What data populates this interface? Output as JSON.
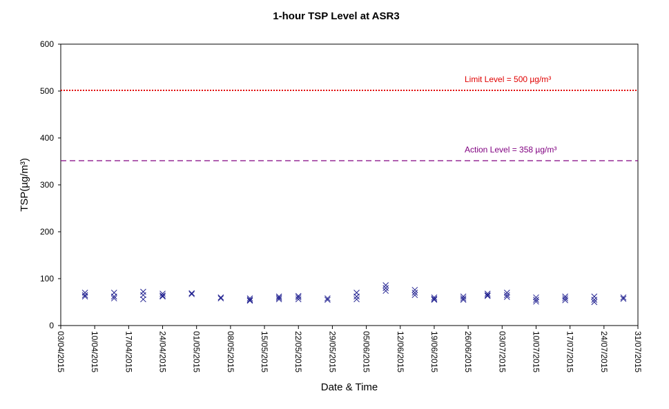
{
  "chart_data": {
    "type": "scatter",
    "title": "1-hour TSP Level at ASR3",
    "xlabel": "Date & Time",
    "ylabel": "TSP(µg/m³)",
    "xlim": [
      "03/04/2015",
      "31/07/2015"
    ],
    "ylim": [
      0,
      600
    ],
    "y_ticks": [
      0,
      100,
      200,
      300,
      400,
      500,
      600
    ],
    "x_ticks": [
      "03/04/2015",
      "10/04/2015",
      "17/04/2015",
      "24/04/2015",
      "01/05/2015",
      "08/05/2015",
      "15/05/2015",
      "22/05/2015",
      "29/05/2015",
      "05/06/2015",
      "12/06/2015",
      "19/06/2015",
      "26/06/2015",
      "03/07/2015",
      "10/07/2015",
      "17/07/2015",
      "24/07/2015",
      "31/07/2015"
    ],
    "grid": false,
    "marker_color": "#1f1f8f",
    "reference_lines": [
      {
        "label": "Limit Level  = 500 µg/m³",
        "value": 500,
        "color": "#e00000",
        "style": "dotted"
      },
      {
        "label": "Action Level  = 358 µg/m³",
        "value": 358,
        "color": "#800080",
        "style": "dashed"
      }
    ],
    "series": [
      {
        "points": [
          [
            "08/04/2015",
            70
          ],
          [
            "08/04/2015",
            65
          ],
          [
            "08/04/2015",
            62
          ],
          [
            "14/04/2015",
            70
          ],
          [
            "14/04/2015",
            62
          ],
          [
            "14/04/2015",
            58
          ],
          [
            "20/04/2015",
            72
          ],
          [
            "20/04/2015",
            65
          ],
          [
            "20/04/2015",
            56
          ],
          [
            "24/04/2015",
            68
          ],
          [
            "24/04/2015",
            64
          ],
          [
            "24/04/2015",
            62
          ],
          [
            "30/04/2015",
            69
          ],
          [
            "30/04/2015",
            67
          ],
          [
            "06/05/2015",
            60
          ],
          [
            "06/05/2015",
            58
          ],
          [
            "12/05/2015",
            58
          ],
          [
            "12/05/2015",
            55
          ],
          [
            "12/05/2015",
            53
          ],
          [
            "18/05/2015",
            62
          ],
          [
            "18/05/2015",
            59
          ],
          [
            "18/05/2015",
            56
          ],
          [
            "22/05/2015",
            63
          ],
          [
            "22/05/2015",
            60
          ],
          [
            "22/05/2015",
            56
          ],
          [
            "28/05/2015",
            58
          ],
          [
            "28/05/2015",
            55
          ],
          [
            "03/06/2015",
            70
          ],
          [
            "03/06/2015",
            62
          ],
          [
            "03/06/2015",
            56
          ],
          [
            "09/06/2015",
            86
          ],
          [
            "09/06/2015",
            80
          ],
          [
            "09/06/2015",
            74
          ],
          [
            "15/06/2015",
            76
          ],
          [
            "15/06/2015",
            70
          ],
          [
            "15/06/2015",
            65
          ],
          [
            "19/06/2015",
            60
          ],
          [
            "19/06/2015",
            57
          ],
          [
            "19/06/2015",
            55
          ],
          [
            "25/06/2015",
            62
          ],
          [
            "25/06/2015",
            58
          ],
          [
            "25/06/2015",
            55
          ],
          [
            "30/06/2015",
            68
          ],
          [
            "30/06/2015",
            65
          ],
          [
            "30/06/2015",
            63
          ],
          [
            "04/07/2015",
            70
          ],
          [
            "04/07/2015",
            65
          ],
          [
            "04/07/2015",
            61
          ],
          [
            "10/07/2015",
            60
          ],
          [
            "10/07/2015",
            55
          ],
          [
            "10/07/2015",
            51
          ],
          [
            "16/07/2015",
            62
          ],
          [
            "16/07/2015",
            58
          ],
          [
            "16/07/2015",
            54
          ],
          [
            "22/07/2015",
            62
          ],
          [
            "22/07/2015",
            55
          ],
          [
            "22/07/2015",
            50
          ],
          [
            "28/07/2015",
            60
          ],
          [
            "28/07/2015",
            57
          ]
        ]
      }
    ]
  }
}
